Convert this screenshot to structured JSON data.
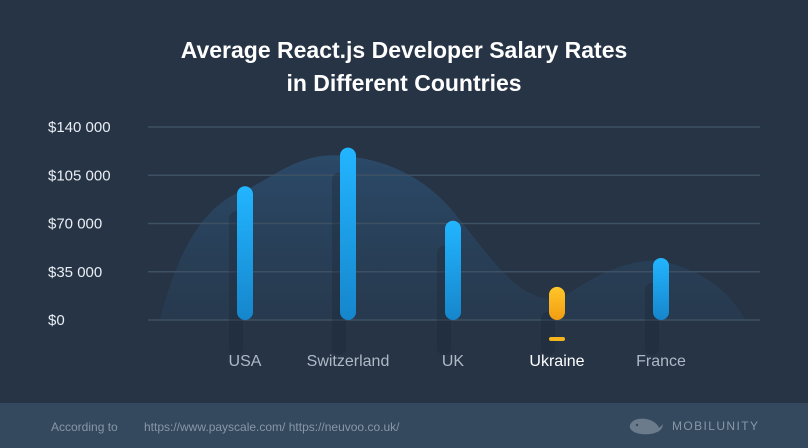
{
  "chart_data": {
    "type": "bar",
    "title_lines": [
      "Average React.js Developer Salary Rates",
      "in Different Countries"
    ],
    "categories": [
      "USA",
      "Switzerland",
      "UK",
      "Ukraine",
      "France"
    ],
    "values": [
      97000,
      125000,
      72000,
      24000,
      45000
    ],
    "highlighted_category": "Ukraine",
    "y_ticks": [
      "$0",
      "$35 000",
      "$70 000",
      "$105 000",
      "$140 000"
    ],
    "ylim": [
      0,
      140000
    ],
    "grid": true,
    "colors": {
      "bar": "#1aa3ee",
      "bar_highlight": "#f5b51c",
      "background": "#263445",
      "grid": "#3e5063"
    }
  },
  "footer": {
    "label": "According to",
    "sources": "https://www.payscale.com/ https://neuvoo.co.uk/",
    "brand": "MOBILUNITY"
  }
}
